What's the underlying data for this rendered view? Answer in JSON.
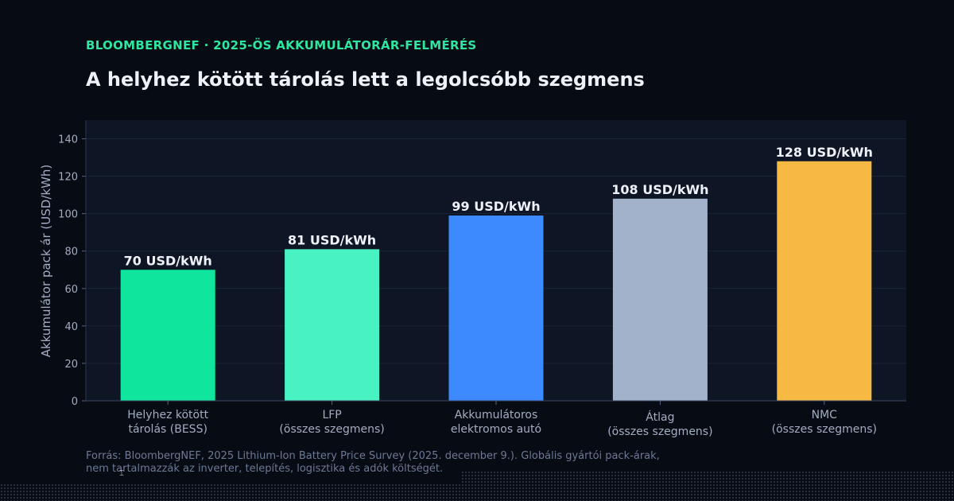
{
  "header": {
    "kicker": "BLOOMBERGNEF · 2025-ÖS AKKUMULÁTORÁR-FELMÉRÉS",
    "title": "A helyhez kötött tárolás lett a legolcsóbb szegmens"
  },
  "footer": {
    "source_line1": "Forrás: BloombergNEF, 2025 Lithium-Ion Battery Price Survey (2025. december 9.). Globális gyártói pack-árak,",
    "source_line2": "nem tartalmazzák az inverter, telepítés, logisztika és adók költségét."
  },
  "chart_data": {
    "type": "bar",
    "categories": [
      [
        "Helyhez kötött",
        "tárolás (BESS)"
      ],
      [
        "LFP",
        "(összes szegmens)"
      ],
      [
        "Akkumulátoros",
        "elektromos autó"
      ],
      [
        "Átlag",
        "(összes szegmens)"
      ],
      [
        "NMC",
        "(összes szegmens)"
      ]
    ],
    "values": [
      70,
      81,
      99,
      108,
      128
    ],
    "data_labels": [
      "70 USD/kWh",
      "81 USD/kWh",
      "99 USD/kWh",
      "108 USD/kWh",
      "128 USD/kWh"
    ],
    "colors": [
      "#10e59e",
      "#48f2c2",
      "#3d8aff",
      "#a3b2cb",
      "#f6b944"
    ],
    "ylabel": "Akkumulátor pack ár (USD/kWh)",
    "ylim": [
      0,
      150
    ],
    "yticks": [
      0,
      20,
      40,
      60,
      80,
      100,
      120,
      140
    ],
    "grid": true
  }
}
